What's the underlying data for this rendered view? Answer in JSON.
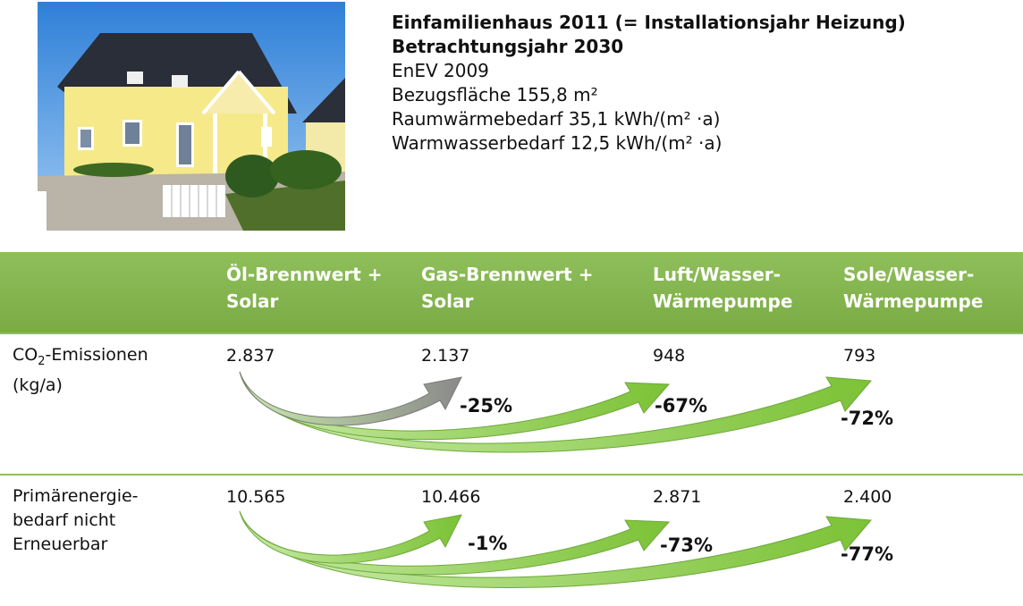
{
  "info": {
    "title_line1": "Einfamilienhaus 2011 (= Installationsjahr Heizung)",
    "title_line2": "Betrachtungsjahr 2030",
    "line3": "EnEV 2009",
    "line4": "Bezugsfläche  155,8 m²",
    "line5": "Raumwärmebedarf 35,1 kWh/(m² ·a)",
    "line6": "Warmwasserbedarf 12,5 kWh/(m² ·a)"
  },
  "columns": [
    {
      "line1": "Öl-Brennwert +",
      "line2": "Solar"
    },
    {
      "line1": "Gas-Brennwert +",
      "line2": "Solar"
    },
    {
      "line1": "Luft/Wasser-",
      "line2": "Wärmepumpe"
    },
    {
      "line1": "Sole/Wasser-",
      "line2": "Wärmepumpe"
    }
  ],
  "rows": [
    {
      "label_l1a": "CO",
      "label_l1sub": "2",
      "label_l1b": "-Emissionen",
      "label_l2": "(kg/a)",
      "values": [
        "2.837",
        "2.137",
        "948",
        "793"
      ],
      "changes": [
        "-25%",
        "-67%",
        "-72%"
      ]
    },
    {
      "label_l1": "Primärenergie-",
      "label_l2": "bedarf nicht",
      "label_l3": "Erneuerbar",
      "values": [
        "10.565",
        "10.466",
        "2.871",
        "2.400"
      ],
      "changes": [
        "-1%",
        "-73%",
        "-77%"
      ]
    }
  ],
  "colors": {
    "header_green": "#7fb04b",
    "arrow_green": "#8ccf3f",
    "arrow_grey": "#8c8c8c"
  }
}
